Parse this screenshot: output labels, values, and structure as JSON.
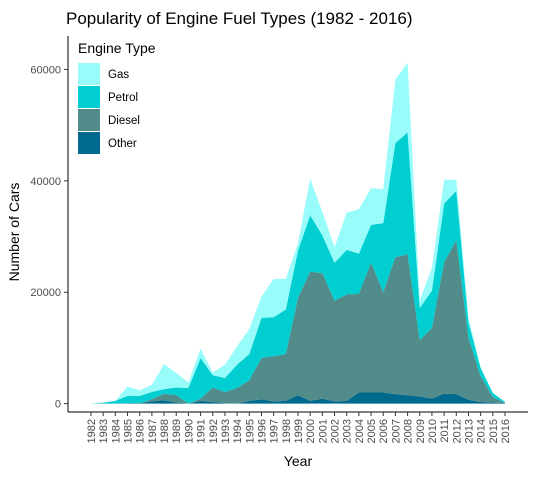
{
  "chart_data": {
    "type": "area",
    "stacked": true,
    "title": "Popularity of Engine Fuel Types (1982 - 2016)",
    "xlabel": "Year",
    "ylabel": "Number of Cars",
    "x": [
      1982,
      1983,
      1984,
      1985,
      1986,
      1987,
      1988,
      1989,
      1990,
      1991,
      1992,
      1993,
      1994,
      1995,
      1996,
      1997,
      1998,
      1999,
      2000,
      2001,
      2002,
      2003,
      2004,
      2005,
      2006,
      2007,
      2008,
      2009,
      2010,
      2011,
      2012,
      2013,
      2014,
      2015,
      2016
    ],
    "x_tick_labels": [
      "1982",
      "1983",
      "1984",
      "1985",
      "1986",
      "1987",
      "1988",
      "1989",
      "1990",
      "1991",
      "1992",
      "1993",
      "1994",
      "1995",
      "1996",
      "1997",
      "1998",
      "1999",
      "2000",
      "2001",
      "2002",
      "2003",
      "2004",
      "2005",
      "2006",
      "2007",
      "2008",
      "2009",
      "2010",
      "2011",
      "2012",
      "2013",
      "2014",
      "2015",
      "2016"
    ],
    "ylim": [
      -1500,
      66000
    ],
    "y_ticks": [
      0,
      20000,
      40000,
      60000
    ],
    "y_tick_labels": [
      "0",
      "20000",
      "40000",
      "60000"
    ],
    "grid": false,
    "legend": {
      "title": "Engine Type",
      "placement": "top-left",
      "entries": [
        "Gas",
        "Petrol",
        "Diesel",
        "Other"
      ]
    },
    "series": [
      {
        "name": "Other",
        "color": "#006a8e",
        "values": [
          0,
          50,
          0,
          100,
          100,
          400,
          600,
          200,
          0,
          500,
          300,
          100,
          0,
          500,
          800,
          400,
          500,
          1500,
          500,
          900,
          400,
          500,
          2000,
          2000,
          2000,
          1700,
          1500,
          1300,
          900,
          1800,
          1700,
          700,
          300,
          200,
          100
        ]
      },
      {
        "name": "Diesel",
        "color": "#528c8a",
        "values": [
          0,
          0,
          0,
          0,
          0,
          400,
          1200,
          1300,
          0,
          400,
          2600,
          2000,
          2800,
          3700,
          7400,
          8100,
          8400,
          17500,
          23200,
          22500,
          18100,
          19100,
          17700,
          23300,
          18000,
          24600,
          25300,
          10100,
          12700,
          23600,
          27600,
          11100,
          4600,
          1000,
          0
        ]
      },
      {
        "name": "Petrol",
        "color": "#00ced0",
        "values": [
          0,
          100,
          500,
          1300,
          1300,
          1300,
          800,
          1400,
          2800,
          7300,
          2200,
          2500,
          4200,
          4700,
          7200,
          7000,
          8000,
          8500,
          10100,
          6800,
          6800,
          8000,
          7200,
          6800,
          12400,
          20500,
          21900,
          5800,
          6700,
          10500,
          8900,
          2800,
          1500,
          700,
          200
        ]
      },
      {
        "name": "Gas",
        "color": "#98fcfb",
        "values": [
          0,
          100,
          0,
          1700,
          1000,
          1300,
          4500,
          2600,
          1000,
          1700,
          500,
          2400,
          3300,
          4500,
          3800,
          6900,
          5500,
          1300,
          6600,
          4200,
          2800,
          6700,
          8000,
          6600,
          6100,
          11400,
          12500,
          1400,
          4100,
          4300,
          2000,
          900,
          100,
          0,
          0
        ]
      }
    ]
  }
}
